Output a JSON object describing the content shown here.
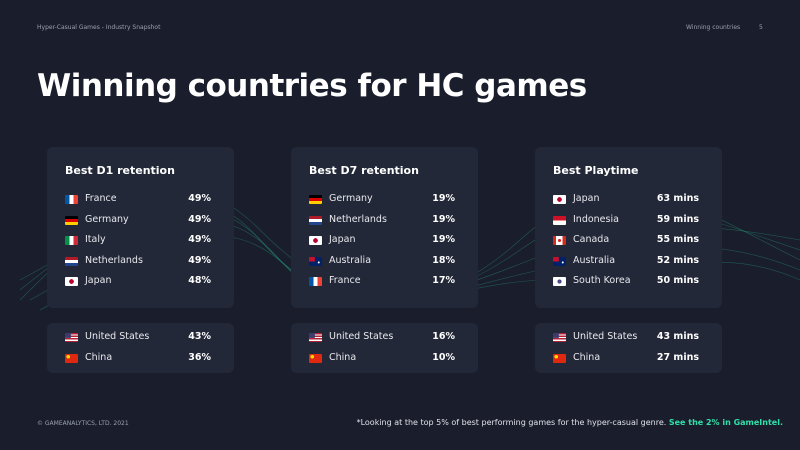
{
  "header": {
    "left": "Hyper-Casual Games - Industry Snapshot",
    "section": "Winning countries",
    "page": "5"
  },
  "title": "Winning countries for HC games",
  "cards": [
    {
      "title": "Best D1 retention",
      "top": [
        {
          "country": "France",
          "value": "49%"
        },
        {
          "country": "Germany",
          "value": "49%"
        },
        {
          "country": "Italy",
          "value": "49%"
        },
        {
          "country": "Netherlands",
          "value": "49%"
        },
        {
          "country": "Japan",
          "value": "48%"
        }
      ],
      "bottom": [
        {
          "country": "United States",
          "value": "43%"
        },
        {
          "country": "China",
          "value": "36%"
        }
      ]
    },
    {
      "title": "Best D7 retention",
      "top": [
        {
          "country": "Germany",
          "value": "19%"
        },
        {
          "country": "Netherlands",
          "value": "19%"
        },
        {
          "country": "Japan",
          "value": "19%"
        },
        {
          "country": "Australia",
          "value": "18%"
        },
        {
          "country": "France",
          "value": "17%"
        }
      ],
      "bottom": [
        {
          "country": "United States",
          "value": "16%"
        },
        {
          "country": "China",
          "value": "10%"
        }
      ]
    },
    {
      "title": "Best Playtime",
      "top": [
        {
          "country": "Japan",
          "value": "63 mins"
        },
        {
          "country": "Indonesia",
          "value": "59 mins"
        },
        {
          "country": "Canada",
          "value": "55 mins"
        },
        {
          "country": "Australia",
          "value": "52 mins"
        },
        {
          "country": "South Korea",
          "value": "50 mins"
        }
      ],
      "bottom": [
        {
          "country": "United States",
          "value": "43 mins"
        },
        {
          "country": "China",
          "value": "27 mins"
        }
      ]
    }
  ],
  "footer": {
    "copyright": "© GAMEANALYTICS, LTD. 2021",
    "note": "*Looking at the top 5% of best performing games for the hyper-casual genre.",
    "link": "See the 2% in GameIntel."
  }
}
